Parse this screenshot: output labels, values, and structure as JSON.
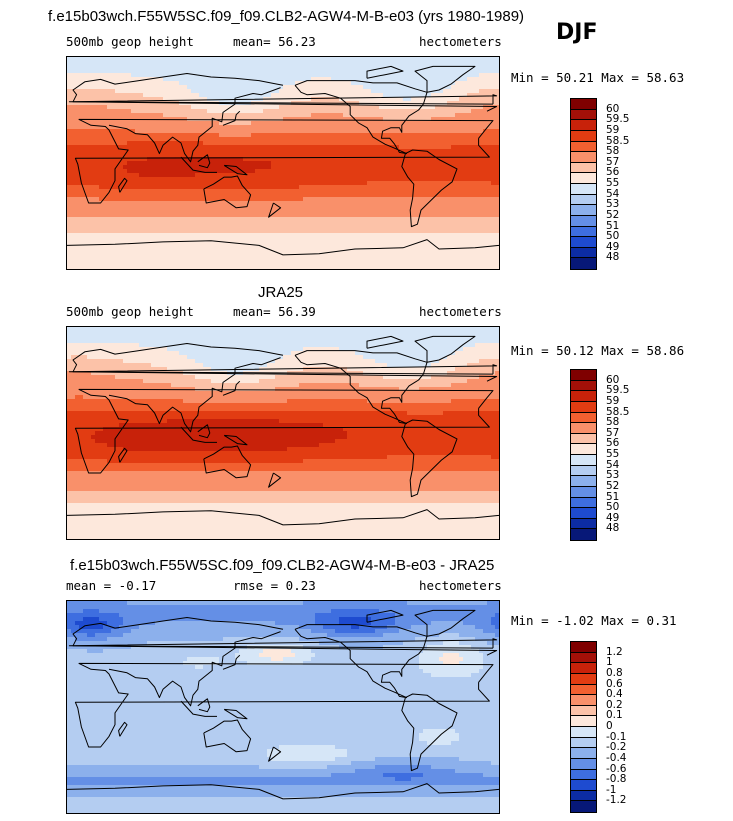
{
  "season": "DJF",
  "panels": [
    {
      "title": "f.e15b03wch.F55W5SC.f09_f09.CLB2-AGW4-M-B-e03 (yrs 1980-1989)",
      "left_label": "500mb geop height",
      "center_label": "mean=  56.23",
      "right_label": "hectometers",
      "stats": "Min =  50.21 Max =  58.63",
      "field": "model",
      "colorbar": {
        "labels": [
          "60",
          "59.5",
          "59",
          "58.5",
          "58",
          "57",
          "56",
          "55",
          "54",
          "53",
          "52",
          "51",
          "50",
          "49",
          "48"
        ],
        "colors": [
          "#7f0000",
          "#a31008",
          "#c8220a",
          "#e23c12",
          "#f26030",
          "#f9906a",
          "#fcc2a8",
          "#fde8dc",
          "#d6e6f7",
          "#b4cdf1",
          "#8cb0ec",
          "#648fe6",
          "#3e6ee0",
          "#1e4bd0",
          "#0c2ca4",
          "#071878"
        ]
      }
    },
    {
      "title": "JRA25",
      "left_label": "500mb geop height",
      "center_label": "mean=  56.39",
      "right_label": "hectometers",
      "stats": "Min =  50.12 Max =  58.86",
      "field": "obs",
      "colorbar": {
        "labels": [
          "60",
          "59.5",
          "59",
          "58.5",
          "58",
          "57",
          "56",
          "55",
          "54",
          "53",
          "52",
          "51",
          "50",
          "49",
          "48"
        ],
        "colors": [
          "#7f0000",
          "#a31008",
          "#c8220a",
          "#e23c12",
          "#f26030",
          "#f9906a",
          "#fcc2a8",
          "#fde8dc",
          "#d6e6f7",
          "#b4cdf1",
          "#8cb0ec",
          "#648fe6",
          "#3e6ee0",
          "#1e4bd0",
          "#0c2ca4",
          "#071878"
        ]
      }
    },
    {
      "title": "f.e15b03wch.F55W5SC.f09_f09.CLB2-AGW4-M-B-e03 - JRA25",
      "left_label": "mean =  -0.17",
      "center_label": "rmse =   0.23",
      "right_label": "hectometers",
      "stats": "Min =  -1.02 Max =   0.31",
      "field": "diff",
      "colorbar": {
        "labels": [
          "1.2",
          "1",
          "0.8",
          "0.6",
          "0.4",
          "0.2",
          "0.1",
          "0",
          "-0.1",
          "-0.2",
          "-0.4",
          "-0.6",
          "-0.8",
          "-1",
          "-1.2"
        ],
        "colors": [
          "#7f0000",
          "#a31008",
          "#c8220a",
          "#e23c12",
          "#f26030",
          "#f9906a",
          "#fcc2a8",
          "#fde8dc",
          "#d6e6f7",
          "#b4cdf1",
          "#8cb0ec",
          "#648fe6",
          "#3e6ee0",
          "#1e4bd0",
          "#0c2ca4",
          "#071878"
        ]
      }
    }
  ]
}
